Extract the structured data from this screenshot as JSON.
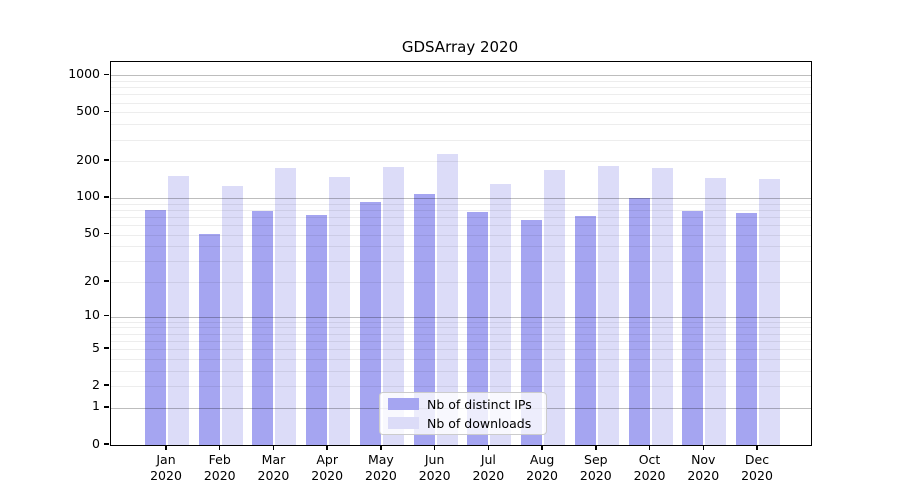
{
  "title": "GDSArray 2020",
  "legend": {
    "items": [
      {
        "label": "Nb of distinct IPs",
        "color": "#a5a5f1"
      },
      {
        "label": "Nb of downloads",
        "color": "#dcdcf8"
      }
    ]
  },
  "chart_data": {
    "type": "bar",
    "title": "GDSArray 2020",
    "scale": "log1p",
    "categories": [
      "Jan",
      "Feb",
      "Mar",
      "Apr",
      "May",
      "Jun",
      "Jul",
      "Aug",
      "Sep",
      "Oct",
      "Nov",
      "Dec"
    ],
    "category_year": "2020",
    "series": [
      {
        "name": "Nb of distinct IPs",
        "color": "#a5a5f1",
        "values": [
          80,
          51,
          78,
          73,
          93,
          107,
          77,
          66,
          71,
          100,
          78,
          76
        ]
      },
      {
        "name": "Nb of downloads",
        "color": "#dcdcf8",
        "values": [
          151,
          125,
          176,
          149,
          180,
          230,
          130,
          169,
          182,
          176,
          146,
          143
        ]
      }
    ],
    "yticks": [
      0,
      1,
      2,
      5,
      10,
      20,
      50,
      100,
      200,
      500,
      1000
    ],
    "major_gridlines": [
      1,
      10,
      100,
      1000
    ],
    "minor_gridline_decades": [
      1,
      10,
      100
    ],
    "ylim": [
      0,
      1280
    ],
    "xlabel": "",
    "ylabel": "",
    "grid": true,
    "legend_position": "lower center"
  }
}
